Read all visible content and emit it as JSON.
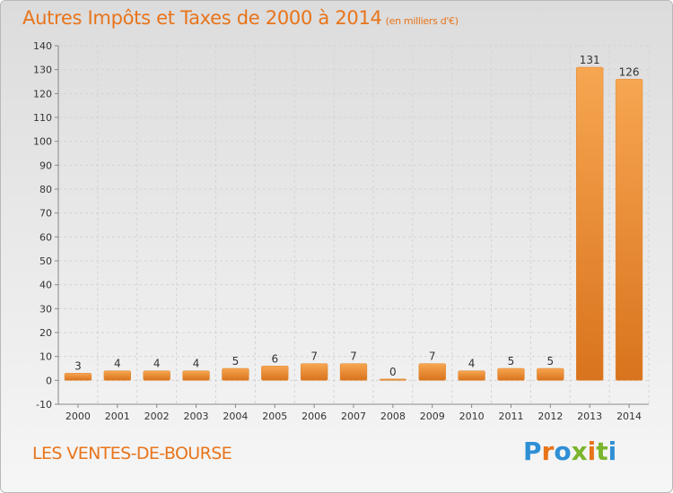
{
  "header": {
    "title": "Autres Impôts et Taxes de 2000 à 2014",
    "subtitle": "(en milliers d'€)"
  },
  "footer": {
    "place": "LES VENTES-DE-BOURSE",
    "logo_letters": [
      "P",
      "r",
      "o",
      "x",
      "i",
      "t",
      "i"
    ]
  },
  "colors": {
    "title": "#e8741a",
    "bar_light": "#f7a651",
    "bar_dark": "#d9731d",
    "grid": "#d4d4d4"
  },
  "chart_data": {
    "type": "bar",
    "title": "Autres Impôts et Taxes de 2000 à 2014",
    "subtitle": "(en milliers d'€)",
    "xlabel": "",
    "ylabel": "",
    "categories": [
      "2000",
      "2001",
      "2002",
      "2003",
      "2004",
      "2005",
      "2006",
      "2007",
      "2008",
      "2009",
      "2010",
      "2011",
      "2012",
      "2013",
      "2014"
    ],
    "values": [
      3,
      4,
      4,
      4,
      5,
      6,
      7,
      7,
      0,
      7,
      4,
      5,
      5,
      131,
      126
    ],
    "ylim": [
      -10,
      140
    ],
    "yticks": [
      -10,
      0,
      10,
      20,
      30,
      40,
      50,
      60,
      70,
      80,
      90,
      100,
      110,
      120,
      130,
      140
    ],
    "grid": "horizontal",
    "legend": "none"
  }
}
